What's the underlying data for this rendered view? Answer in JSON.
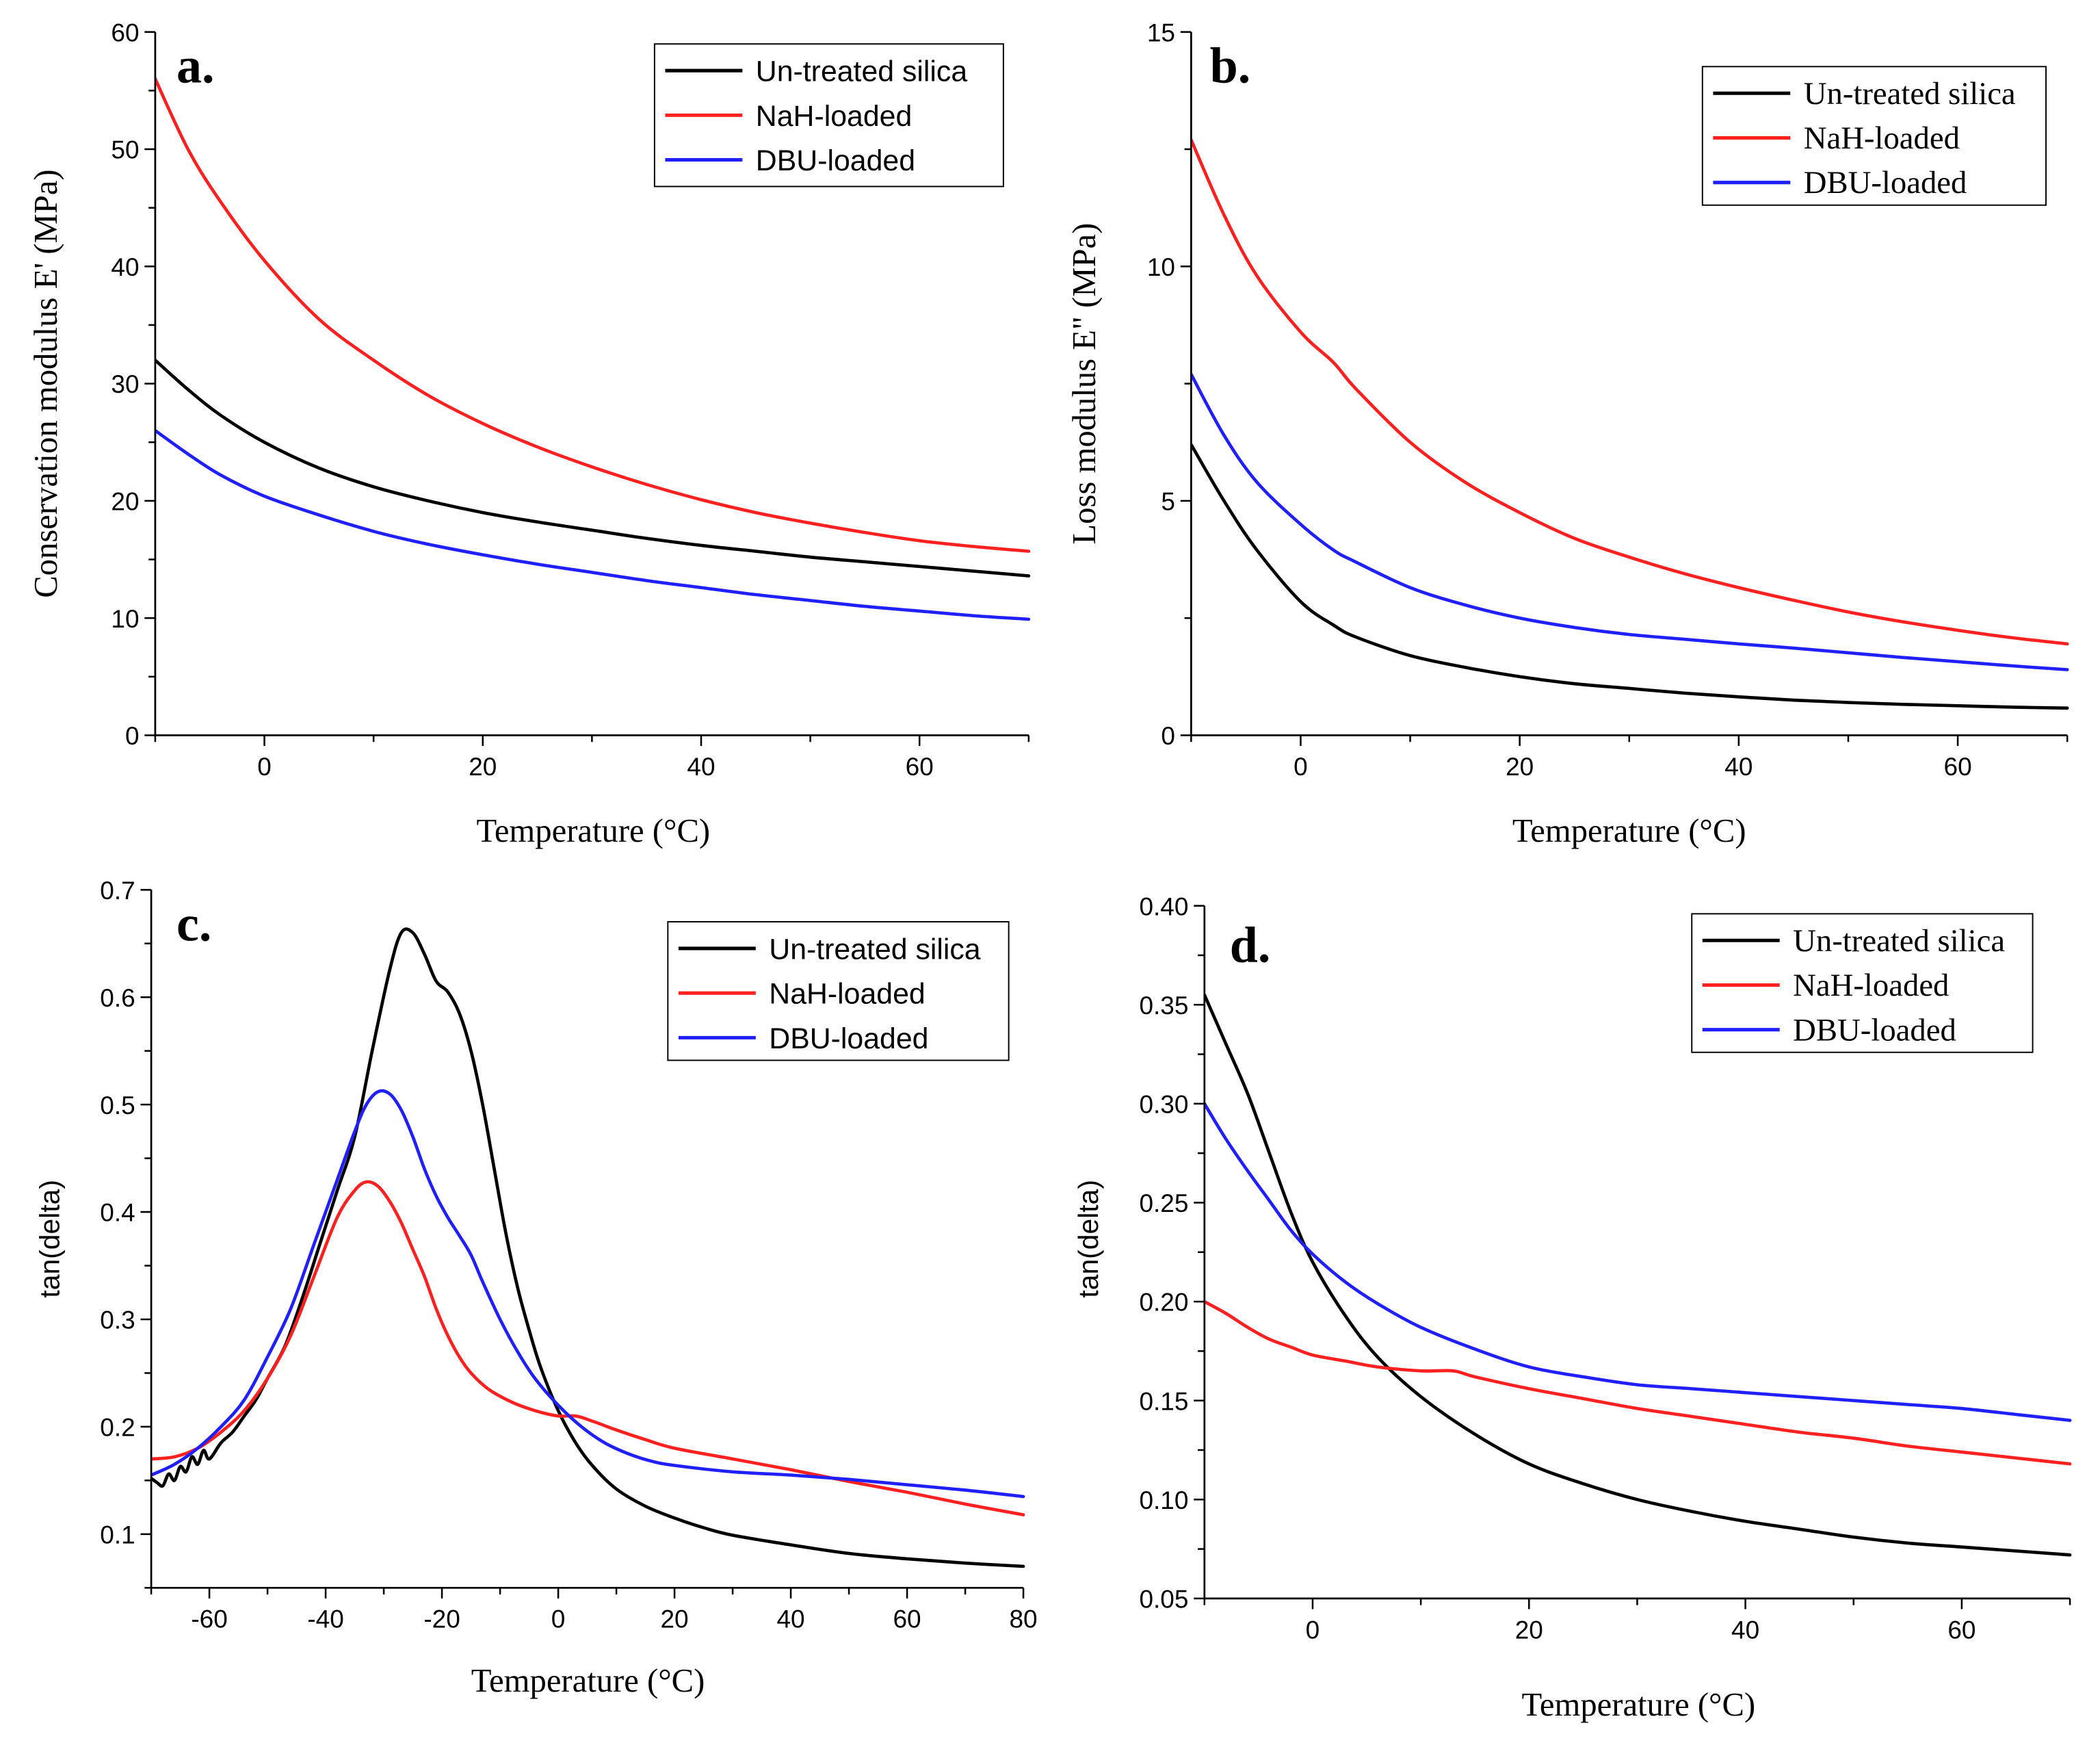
{
  "chart_data": [
    {
      "panel_label": "a.",
      "type": "line",
      "title": "",
      "xlabel": "Temperature (°C)",
      "ylabel": "Conservation modulus E' (MPa)",
      "xlim": [
        -10,
        70
      ],
      "ylim": [
        0,
        60
      ],
      "xticks": [
        0,
        20,
        40,
        60
      ],
      "xtick_labels": [
        "0",
        "20",
        "40",
        "60"
      ],
      "yticks": [
        0,
        10,
        20,
        30,
        40,
        50,
        60
      ],
      "ytick_labels": [
        "0",
        "10",
        "20",
        "30",
        "40",
        "50",
        "60"
      ],
      "grid": false,
      "legend_position": "top-right",
      "series": [
        {
          "name": "Un-treated silica",
          "color": "#000000",
          "x": [
            -10,
            -7,
            -4,
            0,
            5,
            10,
            15,
            20,
            25,
            30,
            35,
            40,
            45,
            50,
            55,
            60,
            65,
            70
          ],
          "y": [
            32,
            29.5,
            27.3,
            25,
            22.8,
            21.2,
            20,
            19,
            18.2,
            17.5,
            16.8,
            16.2,
            15.7,
            15.2,
            14.8,
            14.4,
            14,
            13.6
          ]
        },
        {
          "name": "NaH-loaded",
          "color": "#ff2020",
          "x": [
            -10,
            -7,
            -4,
            0,
            5,
            10,
            15,
            20,
            25,
            30,
            35,
            40,
            45,
            50,
            55,
            60,
            65,
            70
          ],
          "y": [
            56,
            50,
            45.5,
            40.5,
            35.5,
            32,
            29,
            26.6,
            24.6,
            22.9,
            21.4,
            20.1,
            19,
            18.1,
            17.3,
            16.6,
            16.1,
            15.7
          ]
        },
        {
          "name": "DBU-loaded",
          "color": "#2020ff",
          "x": [
            -10,
            -7,
            -4,
            0,
            5,
            10,
            15,
            20,
            25,
            30,
            35,
            40,
            45,
            50,
            55,
            60,
            65,
            70
          ],
          "y": [
            26,
            24,
            22.2,
            20.4,
            18.8,
            17.4,
            16.3,
            15.4,
            14.6,
            13.9,
            13.2,
            12.6,
            12,
            11.5,
            11,
            10.6,
            10.2,
            9.9
          ]
        }
      ]
    },
    {
      "panel_label": "b.",
      "type": "line",
      "title": "",
      "xlabel": "Temperature (°C)",
      "ylabel": "Loss modulus E\" (MPa)",
      "xlim": [
        -10,
        70
      ],
      "ylim": [
        0,
        15
      ],
      "xticks": [
        0,
        20,
        40,
        60
      ],
      "xtick_labels": [
        "0",
        "20",
        "40",
        "60"
      ],
      "yticks": [
        0,
        5,
        10,
        15
      ],
      "ytick_labels": [
        "0",
        "5",
        "10",
        "15"
      ],
      "grid": false,
      "legend_position": "top-right",
      "series": [
        {
          "name": "Un-treated silica",
          "color": "#000000",
          "x": [
            -10,
            -7,
            -4,
            0,
            3,
            5,
            10,
            15,
            20,
            25,
            30,
            35,
            40,
            45,
            50,
            55,
            60,
            65,
            70
          ],
          "y": [
            6.2,
            5.0,
            3.95,
            2.85,
            2.35,
            2.1,
            1.7,
            1.45,
            1.25,
            1.1,
            1.0,
            0.9,
            0.82,
            0.75,
            0.7,
            0.66,
            0.63,
            0.6,
            0.58
          ]
        },
        {
          "name": "NaH-loaded",
          "color": "#ff2020",
          "x": [
            -10,
            -7,
            -4,
            0,
            3,
            5,
            10,
            15,
            20,
            25,
            30,
            35,
            40,
            45,
            50,
            55,
            60,
            65,
            70
          ],
          "y": [
            12.7,
            11.1,
            9.8,
            8.6,
            7.95,
            7.4,
            6.25,
            5.4,
            4.75,
            4.2,
            3.8,
            3.45,
            3.15,
            2.88,
            2.63,
            2.42,
            2.24,
            2.08,
            1.95
          ]
        },
        {
          "name": "DBU-loaded",
          "color": "#2020ff",
          "x": [
            -10,
            -7,
            -4,
            0,
            3,
            5,
            10,
            15,
            20,
            25,
            30,
            35,
            40,
            45,
            50,
            55,
            60,
            65,
            70
          ],
          "y": [
            7.7,
            6.4,
            5.4,
            4.5,
            3.95,
            3.7,
            3.15,
            2.78,
            2.5,
            2.3,
            2.15,
            2.05,
            1.95,
            1.86,
            1.76,
            1.66,
            1.57,
            1.48,
            1.4
          ]
        }
      ]
    },
    {
      "panel_label": "c.",
      "type": "line",
      "title": "",
      "xlabel": "Temperature (°C)",
      "ylabel": "tan(delta)",
      "xlim": [
        -70,
        80
      ],
      "ylim": [
        0.05,
        0.7
      ],
      "xticks": [
        -60,
        -40,
        -20,
        0,
        20,
        40,
        60,
        80
      ],
      "xtick_labels": [
        "-60",
        "-40",
        "-20",
        "0",
        "20",
        "40",
        "60",
        "80"
      ],
      "yticks": [
        0.1,
        0.2,
        0.3,
        0.4,
        0.5,
        0.6,
        0.7
      ],
      "ytick_labels": [
        "0.1",
        "0.2",
        "0.3",
        "0.4",
        "0.5",
        "0.6",
        "0.7"
      ],
      "grid": false,
      "legend_position": "top-right",
      "series": [
        {
          "name": "Un-treated silica",
          "color": "#000000",
          "x": [
            -70,
            -69,
            -68,
            -67,
            -66,
            -65,
            -64,
            -63,
            -62,
            -61,
            -60,
            -58,
            -56,
            -54,
            -52,
            -50,
            -47,
            -44,
            -41,
            -38,
            -35,
            -32,
            -29,
            -27,
            -25,
            -23,
            -21,
            -19,
            -17,
            -15,
            -13,
            -11,
            -9,
            -7,
            -5,
            -3,
            0,
            3,
            6,
            10,
            15,
            20,
            25,
            30,
            40,
            50,
            60,
            70,
            80
          ],
          "y": [
            0.152,
            0.148,
            0.145,
            0.156,
            0.15,
            0.163,
            0.158,
            0.172,
            0.165,
            0.178,
            0.17,
            0.185,
            0.195,
            0.21,
            0.225,
            0.245,
            0.275,
            0.32,
            0.37,
            0.42,
            0.47,
            0.55,
            0.625,
            0.66,
            0.66,
            0.64,
            0.615,
            0.605,
            0.585,
            0.55,
            0.5,
            0.44,
            0.38,
            0.33,
            0.29,
            0.255,
            0.215,
            0.185,
            0.163,
            0.142,
            0.126,
            0.115,
            0.106,
            0.099,
            0.09,
            0.082,
            0.077,
            0.073,
            0.07
          ]
        },
        {
          "name": "NaH-loaded",
          "color": "#ff2020",
          "x": [
            -70,
            -66,
            -62,
            -58,
            -54,
            -50,
            -46,
            -42,
            -38,
            -35,
            -33,
            -31,
            -29,
            -27,
            -25,
            -23,
            -21,
            -19,
            -17,
            -15,
            -12,
            -8,
            -4,
            0,
            3,
            6,
            10,
            15,
            20,
            30,
            40,
            50,
            60,
            70,
            80
          ],
          "y": [
            0.17,
            0.172,
            0.18,
            0.195,
            0.215,
            0.245,
            0.285,
            0.34,
            0.395,
            0.42,
            0.428,
            0.424,
            0.41,
            0.39,
            0.365,
            0.34,
            0.31,
            0.285,
            0.265,
            0.25,
            0.235,
            0.223,
            0.215,
            0.21,
            0.21,
            0.205,
            0.197,
            0.188,
            0.18,
            0.17,
            0.16,
            0.149,
            0.139,
            0.128,
            0.118
          ]
        },
        {
          "name": "DBU-loaded",
          "color": "#2020ff",
          "x": [
            -70,
            -66,
            -62,
            -58,
            -54,
            -50,
            -46,
            -42,
            -38,
            -35,
            -33,
            -31,
            -29,
            -27,
            -25,
            -23,
            -21,
            -19,
            -17,
            -15,
            -13,
            -10,
            -7,
            -4,
            0,
            4,
            8,
            12,
            16,
            20,
            30,
            40,
            50,
            60,
            70,
            80
          ],
          "y": [
            0.155,
            0.165,
            0.18,
            0.2,
            0.225,
            0.265,
            0.31,
            0.37,
            0.43,
            0.475,
            0.5,
            0.512,
            0.51,
            0.495,
            0.47,
            0.44,
            0.415,
            0.395,
            0.378,
            0.36,
            0.335,
            0.3,
            0.27,
            0.245,
            0.22,
            0.2,
            0.185,
            0.175,
            0.168,
            0.164,
            0.158,
            0.155,
            0.151,
            0.146,
            0.141,
            0.135
          ]
        }
      ]
    },
    {
      "panel_label": "d.",
      "type": "line",
      "title": "",
      "xlabel": "Temperature (°C)",
      "ylabel": "tan(delta)",
      "xlim": [
        -10,
        70
      ],
      "ylim": [
        0.05,
        0.4
      ],
      "xticks": [
        0,
        20,
        40,
        60
      ],
      "xtick_labels": [
        "0",
        "20",
        "40",
        "60"
      ],
      "yticks": [
        0.05,
        0.1,
        0.15,
        0.2,
        0.25,
        0.3,
        0.35,
        0.4
      ],
      "ytick_labels": [
        "0.05",
        "0.10",
        "0.15",
        "0.20",
        "0.25",
        "0.30",
        "0.35",
        "0.40"
      ],
      "grid": false,
      "legend_position": "top-right",
      "series": [
        {
          "name": "Un-treated silica",
          "color": "#000000",
          "x": [
            -10,
            -8,
            -6,
            -4,
            -2,
            0,
            3,
            6,
            10,
            15,
            20,
            25,
            30,
            35,
            40,
            45,
            50,
            55,
            60,
            65,
            70
          ],
          "y": [
            0.355,
            0.33,
            0.305,
            0.275,
            0.245,
            0.22,
            0.193,
            0.172,
            0.152,
            0.133,
            0.118,
            0.108,
            0.1,
            0.094,
            0.089,
            0.085,
            0.081,
            0.078,
            0.076,
            0.074,
            0.072
          ]
        },
        {
          "name": "NaH-loaded",
          "color": "#ff2020",
          "x": [
            -10,
            -8,
            -6,
            -4,
            -2,
            0,
            3,
            6,
            10,
            13,
            15,
            20,
            25,
            30,
            35,
            40,
            45,
            50,
            55,
            60,
            65,
            70
          ],
          "y": [
            0.2,
            0.194,
            0.187,
            0.181,
            0.177,
            0.173,
            0.17,
            0.167,
            0.165,
            0.165,
            0.162,
            0.156,
            0.151,
            0.146,
            0.142,
            0.138,
            0.134,
            0.131,
            0.127,
            0.124,
            0.121,
            0.118
          ]
        },
        {
          "name": "DBU-loaded",
          "color": "#2020ff",
          "x": [
            -10,
            -8,
            -6,
            -4,
            -2,
            0,
            3,
            6,
            10,
            15,
            20,
            25,
            30,
            35,
            40,
            45,
            50,
            55,
            60,
            65,
            70
          ],
          "y": [
            0.3,
            0.282,
            0.266,
            0.251,
            0.236,
            0.224,
            0.21,
            0.199,
            0.187,
            0.176,
            0.167,
            0.162,
            0.158,
            0.156,
            0.154,
            0.152,
            0.15,
            0.148,
            0.146,
            0.143,
            0.14
          ]
        }
      ]
    }
  ]
}
